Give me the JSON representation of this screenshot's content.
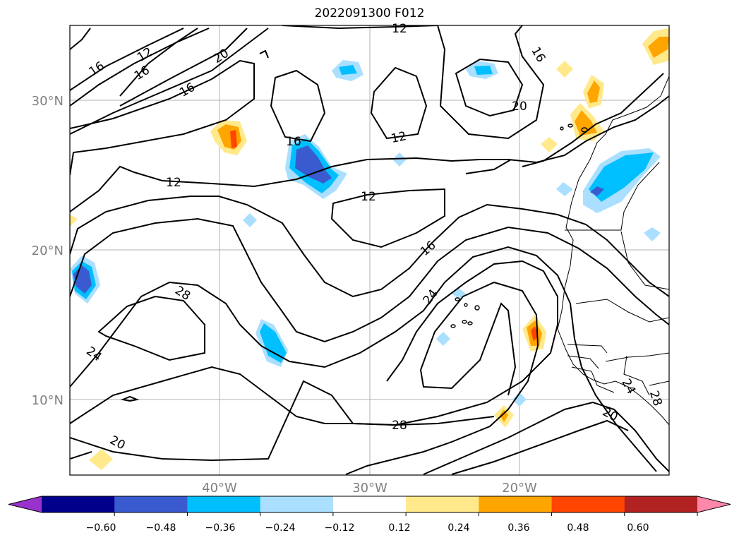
{
  "title": "2022091300 F012",
  "lat_labels": [
    "30°N",
    "20°N",
    "10°N"
  ],
  "lon_labels": [
    "40°W",
    "30°W",
    "20°W"
  ],
  "contour_labels": [
    "12",
    "12",
    "12",
    "12",
    "12",
    "16",
    "16",
    "16",
    "16",
    "16",
    "16",
    "20",
    "20",
    "20",
    "20",
    "24",
    "24",
    "24",
    "28",
    "28",
    "28"
  ],
  "colorbar": {
    "ticks": [
      "−0.60",
      "−0.48",
      "−0.36",
      "−0.24",
      "−0.12",
      "0.12",
      "0.24",
      "0.36",
      "0.48",
      "0.60"
    ],
    "colors": [
      "#9932cc",
      "#00008b",
      "#3a5bd0",
      "#00bfff",
      "#aadfff",
      "#ffffff",
      "#ffe98a",
      "#ffa500",
      "#ff4500",
      "#b22222",
      "#ff88aa"
    ]
  }
}
